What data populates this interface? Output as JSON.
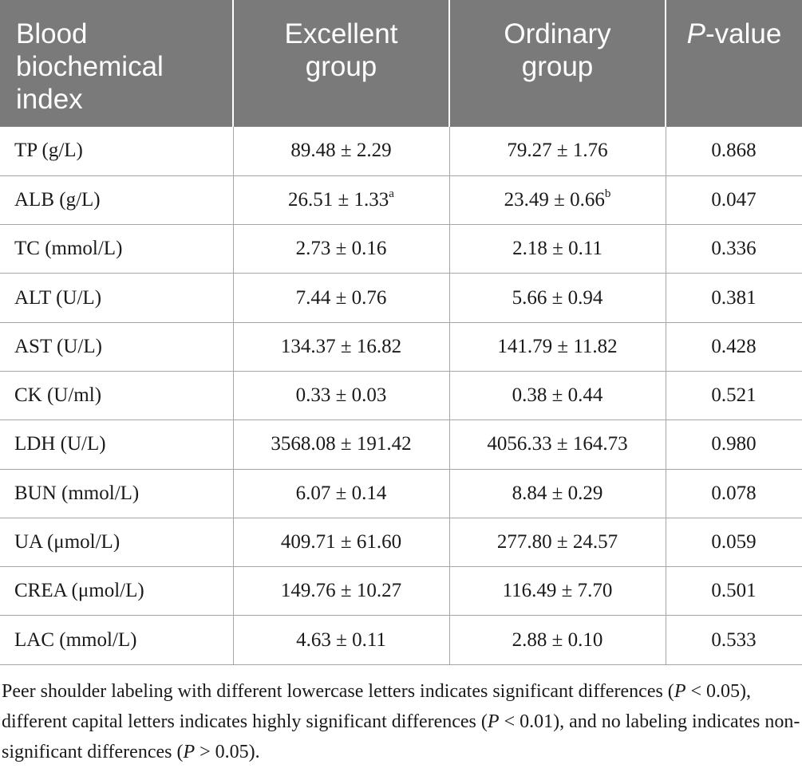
{
  "table": {
    "headers": {
      "col1": "Blood biochemical index",
      "col2": "Excellent group",
      "col3": "Ordinary group",
      "col4_italic": "P",
      "col4_rest": "-value"
    },
    "rows": [
      {
        "index": "TP (g/L)",
        "excellent": "89.48 ± 2.29",
        "excellent_sup": "",
        "ordinary": "79.27 ± 1.76",
        "ordinary_sup": "",
        "p": "0.868"
      },
      {
        "index": "ALB (g/L)",
        "excellent": "26.51 ± 1.33",
        "excellent_sup": "a",
        "ordinary": "23.49 ± 0.66",
        "ordinary_sup": "b",
        "p": "0.047"
      },
      {
        "index": "TC (mmol/L)",
        "excellent": "2.73 ± 0.16",
        "excellent_sup": "",
        "ordinary": "2.18 ± 0.11",
        "ordinary_sup": "",
        "p": "0.336"
      },
      {
        "index": "ALT (U/L)",
        "excellent": "7.44 ± 0.76",
        "excellent_sup": "",
        "ordinary": "5.66 ± 0.94",
        "ordinary_sup": "",
        "p": "0.381"
      },
      {
        "index": "AST (U/L)",
        "excellent": "134.37 ± 16.82",
        "excellent_sup": "",
        "ordinary": "141.79 ± 11.82",
        "ordinary_sup": "",
        "p": "0.428"
      },
      {
        "index": "CK (U/ml)",
        "excellent": "0.33 ± 0.03",
        "excellent_sup": "",
        "ordinary": "0.38 ± 0.44",
        "ordinary_sup": "",
        "p": "0.521"
      },
      {
        "index": "LDH (U/L)",
        "excellent": "3568.08 ± 191.42",
        "excellent_sup": "",
        "ordinary": "4056.33 ± 164.73",
        "ordinary_sup": "",
        "p": "0.980"
      },
      {
        "index": "BUN (mmol/L)",
        "excellent": "6.07 ± 0.14",
        "excellent_sup": "",
        "ordinary": "8.84 ± 0.29",
        "ordinary_sup": "",
        "p": "0.078"
      },
      {
        "index": "UA (μmol/L)",
        "excellent": "409.71 ± 61.60",
        "excellent_sup": "",
        "ordinary": "277.80 ± 24.57",
        "ordinary_sup": "",
        "p": "0.059"
      },
      {
        "index": "CREA (μmol/L)",
        "excellent": "149.76 ± 10.27",
        "excellent_sup": "",
        "ordinary": "116.49 ± 7.70",
        "ordinary_sup": "",
        "p": "0.501"
      },
      {
        "index": "LAC (mmol/L)",
        "excellent": "4.63 ± 0.11",
        "excellent_sup": "",
        "ordinary": "2.88 ± 0.10",
        "ordinary_sup": "",
        "p": "0.533"
      }
    ]
  },
  "footnote": {
    "part1": "Peer shoulder labeling with different lowercase letters indicates significant differences (",
    "p1": "P",
    "part2": " < 0.05), different capital letters indicates highly significant differences (",
    "p2": "P",
    "part3": " < 0.01), and no labeling indicates non-significant differences (",
    "p3": "P",
    "part4": " > 0.05)."
  }
}
